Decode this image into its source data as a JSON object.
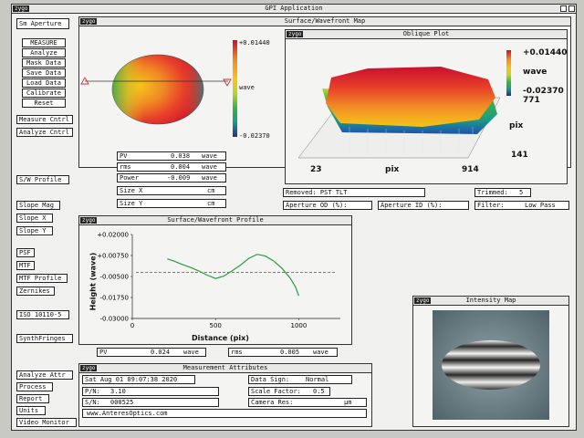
{
  "app": {
    "title": "GPI Application",
    "logo": "zygo"
  },
  "sidebar": {
    "sm_aperture": "Sm Aperture",
    "measure": "MEASURE",
    "analyze": "Analyze",
    "mask_data": "Mask Data",
    "save_data": "Save Data",
    "load_data": "Load Data",
    "calibrate": "Calibrate",
    "reset": "Reset",
    "measure_cntrl": "Measure Cntrl",
    "analyze_cntrl": "Analyze Cntrl",
    "sw_profile": "S/W Profile",
    "slope_mag": "Slope Mag",
    "slope_x": "Slope X",
    "slope_y": "Slope Y",
    "psf": "PSF",
    "mtf": "MTF",
    "mtf_profile": "MTF Profile",
    "zernikes": "Zernikes",
    "iso": "ISO 10110-5",
    "synth_fringes": "SynthFringes",
    "analyze_attr": "Analyze Attr",
    "process": "Process",
    "report": "Report",
    "units": "Units",
    "video_monitor": "Video Monitor"
  },
  "surface_map": {
    "title": "Surface/Wavefront Map",
    "scale_max": "+0.01440",
    "scale_unit": "wave",
    "scale_min": "-0.02370",
    "colors": [
      "#c8102e",
      "#e8402a",
      "#f08a24",
      "#f5c518",
      "#b8d430",
      "#3cb04a",
      "#1a9a8a",
      "#1e4fb0",
      "#2a2a8e"
    ],
    "stats": [
      {
        "label": "PV",
        "value": "0.038",
        "unit": "wave"
      },
      {
        "label": "rms",
        "value": "0.004",
        "unit": "wave"
      },
      {
        "label": "Power",
        "value": "-0.009",
        "unit": "wave"
      },
      {
        "label": "Size X",
        "value": "",
        "unit": "cm"
      },
      {
        "label": "Size Y",
        "value": "",
        "unit": "cm"
      }
    ]
  },
  "oblique": {
    "title": "Oblique Plot",
    "scale_max": "+0.01440",
    "scale_unit": "wave",
    "scale_min": "-0.02370",
    "y_max": "771",
    "y_unit": "pix",
    "y_min": "141",
    "x_min": "23",
    "x_unit": "pix",
    "x_max": "914"
  },
  "info": {
    "removed": "Removed: PST TLT",
    "trimmed_label": "Trimmed:",
    "trimmed_value": "5",
    "aperture_od": "Aperture OD (%):",
    "aperture_id": "Aperture ID (%):",
    "filter_label": "Filter:",
    "filter_value": "Low Pass"
  },
  "profile": {
    "title": "Surface/Wavefront Profile",
    "pv_label": "PV",
    "pv_value": "0.024",
    "pv_unit": "wave",
    "rms_label": "rms",
    "rms_value": "0.005",
    "rms_unit": "wave"
  },
  "chart_data": {
    "type": "line",
    "xlabel": "Distance (pix)",
    "ylabel": "Height (wave)",
    "xlim": [
      0,
      1250
    ],
    "ylim": [
      -0.03,
      0.02
    ],
    "xticks": [
      "0",
      "500",
      "1000"
    ],
    "yticks": [
      "+0.02000",
      "+0.00750",
      "-0.00500",
      "-0.01750",
      "-0.03000"
    ],
    "reference_line": -0.0025,
    "series": [
      {
        "x": [
          210,
          250,
          300,
          350,
          400,
          450,
          500,
          550,
          600,
          650,
          700,
          750,
          800,
          850,
          900,
          950,
          980,
          1000
        ],
        "y": [
          0.0055,
          0.0042,
          0.0022,
          0.0004,
          -0.0018,
          -0.0042,
          -0.0062,
          -0.0048,
          -0.0016,
          0.0018,
          0.0058,
          0.0082,
          0.0072,
          0.0042,
          -0.0002,
          -0.0062,
          -0.0112,
          -0.0165
        ]
      }
    ]
  },
  "intensity": {
    "title": "Intensity Map"
  },
  "attributes": {
    "title": "Measurement Attributes",
    "datetime": "Sat Aug 01 09:07:38 2020",
    "pn_label": "P/N:",
    "pn_value": "3.10",
    "sn_label": "S/N:",
    "sn_value": "000525",
    "website": "www.AnteresOptics.com",
    "data_sign_label": "Data Sign:",
    "data_sign_value": "Normal",
    "scale_factor_label": "Scale Factor:",
    "scale_factor_value": "0.5",
    "camera_res_label": "Camera Res:",
    "camera_res_unit": "µm"
  }
}
